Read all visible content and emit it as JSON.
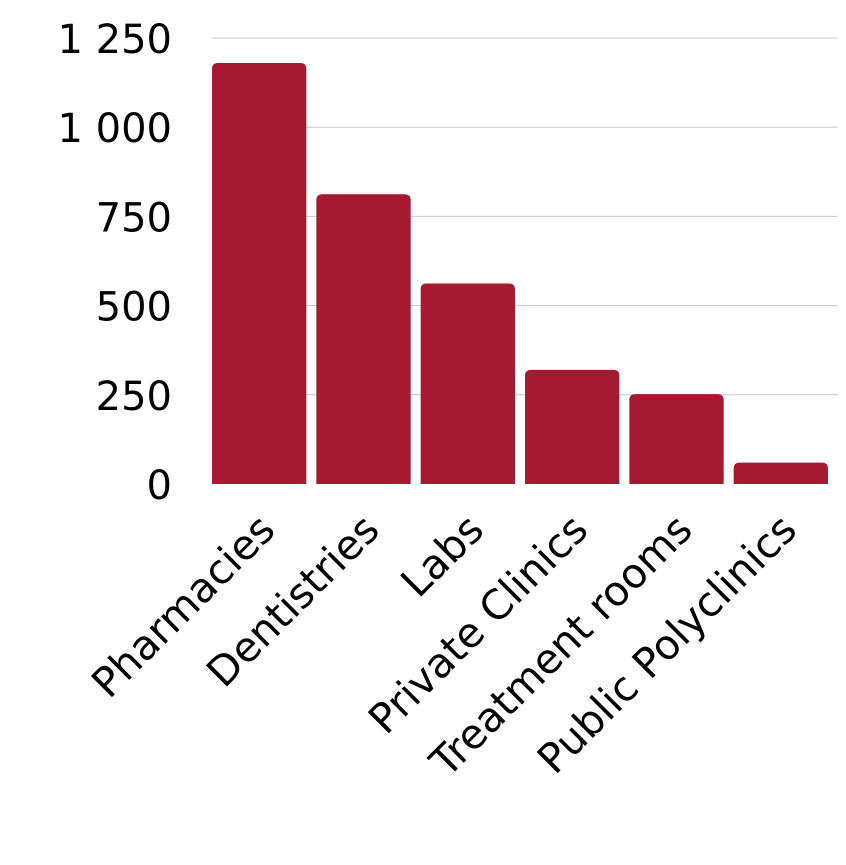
{
  "chart_data": {
    "type": "bar",
    "categories": [
      "Pharmacies",
      "Dentistries",
      "Labs",
      "Private Clinics",
      "Treatment rooms",
      "Public Polyclinics"
    ],
    "values": [
      1180,
      812,
      562,
      320,
      252,
      60
    ],
    "y_ticks": [
      0,
      250,
      500,
      750,
      1000,
      1250
    ],
    "y_tick_labels": [
      "0",
      "250",
      "500",
      "750",
      "1 000",
      "1 250"
    ],
    "ylim": [
      0,
      1250
    ],
    "grid": true,
    "legend": "none",
    "bar_color": "#a51931",
    "grid_color": "#c8c8c8"
  }
}
